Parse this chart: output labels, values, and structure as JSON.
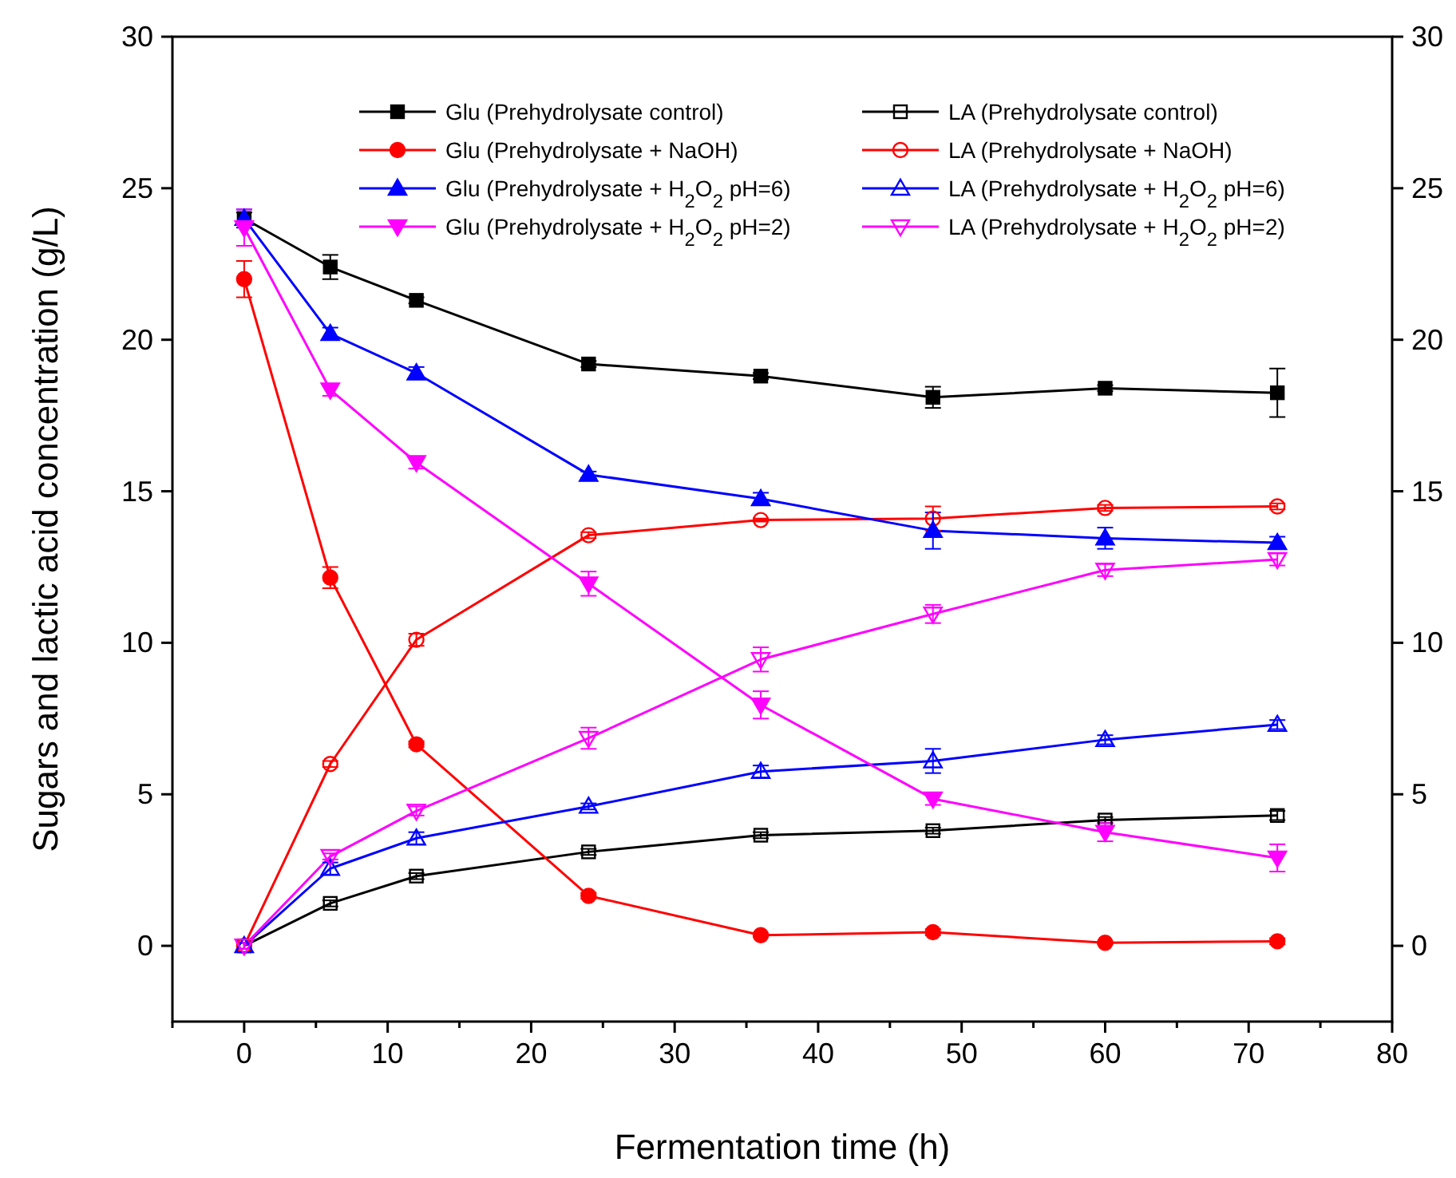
{
  "chart_data": {
    "type": "line",
    "xlabel": "Fermentation time (h)",
    "ylabel": "Sugars and lactic acid concentration (g/L)",
    "x": [
      0,
      6,
      12,
      24,
      36,
      48,
      60,
      72
    ],
    "xlim": [
      -5,
      80
    ],
    "xticks": [
      {
        "value": -5,
        "label": null
      },
      0,
      {
        "value": 5,
        "label": null
      },
      10,
      {
        "value": 15,
        "label": null
      },
      20,
      {
        "value": 25,
        "label": null
      },
      30,
      {
        "value": 35,
        "label": null
      },
      40,
      {
        "value": 45,
        "label": null
      },
      50,
      {
        "value": 55,
        "label": null
      },
      60,
      {
        "value": 65,
        "label": null
      },
      70,
      {
        "value": 75,
        "label": null
      },
      80
    ],
    "ylim": [
      -2.5,
      30
    ],
    "yticks": [
      0,
      5,
      10,
      15,
      20,
      25,
      30
    ],
    "y2lim": [
      -2.5,
      30
    ],
    "y2ticks": [
      0,
      5,
      10,
      15,
      20,
      25,
      30
    ],
    "legend": "top",
    "grid": false,
    "series": [
      {
        "name": "Glu (Prehydrolysate control)",
        "color": "#000000",
        "marker": "square",
        "values": [
          24.0,
          22.4,
          21.3,
          19.2,
          18.8,
          18.1,
          18.4,
          18.25
        ],
        "errors": [
          0.2,
          0.4,
          0.1,
          0.1,
          0.1,
          0.35,
          0.1,
          0.8
        ]
      },
      {
        "name": "LA (Prehydrolysate control)",
        "color": "#000000",
        "marker": "square-open",
        "values": [
          0,
          1.4,
          2.3,
          3.1,
          3.65,
          3.8,
          4.15,
          4.3
        ],
        "errors": [
          0.1,
          0.1,
          0.1,
          0.1,
          0.1,
          0.1,
          0.1,
          0.15
        ]
      },
      {
        "name": "Glu (Prehydrolysate + NaOH)",
        "color": "#ff0000",
        "marker": "circle",
        "values": [
          22.0,
          12.15,
          6.65,
          1.65,
          0.35,
          0.45,
          0.1,
          0.15
        ],
        "errors": [
          0.6,
          0.35,
          0.1,
          0.1,
          0.05,
          0.1,
          0.05,
          0.1
        ]
      },
      {
        "name": "LA (Prehydrolysate + NaOH)",
        "color": "#ff0000",
        "marker": "circle-open",
        "values": [
          0,
          6.0,
          10.1,
          13.55,
          14.05,
          14.1,
          14.45,
          14.5
        ],
        "errors": [
          0.1,
          0.1,
          0.2,
          0.1,
          0.05,
          0.4,
          0.1,
          0.1
        ]
      },
      {
        "name": "Glu (Prehydrolysate + H$_{2}$O$_{2}$ pH=6)",
        "color": "#0000ff",
        "marker": "triangle",
        "values": [
          24.0,
          20.2,
          18.9,
          15.55,
          14.75,
          13.7,
          13.45,
          13.3
        ],
        "errors": [
          0.3,
          0.2,
          0.2,
          0.1,
          0.2,
          0.6,
          0.35,
          0.2
        ]
      },
      {
        "name": "LA (Prehydrolysate + H$_{2}$O$_{2}$ pH=6)",
        "color": "#0000ff",
        "marker": "triangle-open",
        "values": [
          0,
          2.55,
          3.55,
          4.6,
          5.75,
          6.1,
          6.8,
          7.3
        ],
        "errors": [
          0.1,
          0.2,
          0.2,
          0.1,
          0.2,
          0.4,
          0.15,
          0.15
        ]
      },
      {
        "name": "Glu (Prehydrolysate + H$_{2}$O$_{2}$ pH=2)",
        "color": "#ff00ff",
        "marker": "triangle-down",
        "values": [
          23.7,
          18.35,
          15.95,
          11.95,
          7.95,
          4.85,
          3.75,
          2.9
        ],
        "errors": [
          0.6,
          0.2,
          0.2,
          0.4,
          0.45,
          0.2,
          0.3,
          0.45
        ]
      },
      {
        "name": "LA (Prehydrolysate + H$_{2}$O$_{2}$ pH=2)",
        "color": "#ff00ff",
        "marker": "triangle-down-open",
        "values": [
          0,
          2.95,
          4.45,
          6.85,
          9.45,
          10.95,
          12.4,
          12.75
        ],
        "errors": [
          0.1,
          0.1,
          0.15,
          0.35,
          0.4,
          0.3,
          0.2,
          0.2
        ]
      }
    ]
  }
}
